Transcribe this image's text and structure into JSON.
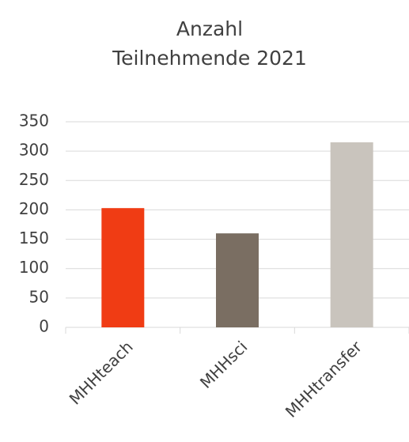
{
  "chart_data": {
    "type": "bar",
    "title": "Anzahl Teilnehmende 2021",
    "categories": [
      "MHHteach",
      "MHHsci",
      "MHHtransfer"
    ],
    "values": [
      203,
      160,
      315
    ],
    "colors": [
      "#f03c14",
      "#7a6e62",
      "#c9c4bd"
    ],
    "ylim": [
      0,
      350
    ],
    "yticks": [
      0,
      50,
      100,
      150,
      200,
      250,
      300,
      350
    ],
    "grid": true
  }
}
